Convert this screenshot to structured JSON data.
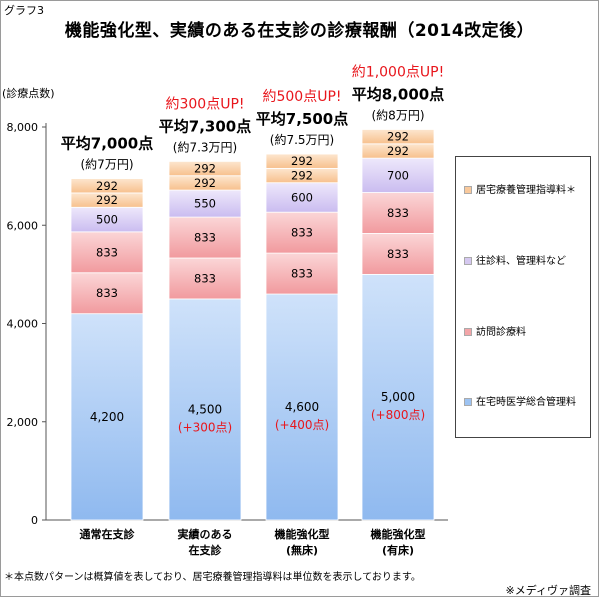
{
  "header": {
    "tag": "グラフ3",
    "title": "機能強化型、実績のある在支診の診療報酬（2014改定後）"
  },
  "footer": {
    "note": "＊本点数パターンは概算値を表しており、居宅療養管理指導料は単位数を表示しております。",
    "source": "※メディヴァ調査"
  },
  "colors": {
    "base": "#9dc3f2",
    "visit": "#f3a5a8",
    "house": "#d5c8f0",
    "kyotaku": "#f9c99c",
    "increase": "#e8161c"
  },
  "chart_data": {
    "type": "bar",
    "stacked": true,
    "ylabel": "(診療点数)",
    "ylim": [
      0,
      8000
    ],
    "yticks": [
      "0",
      "2,000",
      "4,000",
      "6,000",
      "8,000"
    ],
    "categories": [
      [
        "通常在支診"
      ],
      [
        "実績のある",
        "在支診"
      ],
      [
        "機能強化型",
        "(無床)"
      ],
      [
        "機能強化型",
        "(有床)"
      ]
    ],
    "series": [
      {
        "key": "base",
        "name": "在宅時医学総合管理料",
        "values": [
          4200,
          4500,
          4600,
          5000
        ],
        "labels": [
          "4,200",
          "4,500",
          "4,600",
          "5,000"
        ],
        "sublabels": [
          "",
          "(+300点)",
          "(+400点)",
          "(+800点)"
        ]
      },
      {
        "key": "visit",
        "name": "訪問診療料",
        "values": [
          833,
          833,
          833,
          833
        ],
        "labels": [
          "833",
          "833",
          "833",
          "833"
        ]
      },
      {
        "key": "visit",
        "name": "訪問診療料",
        "values": [
          833,
          833,
          833,
          833
        ],
        "labels": [
          "833",
          "833",
          "833",
          "833"
        ]
      },
      {
        "key": "house",
        "name": "往診料、管理料など",
        "values": [
          500,
          550,
          600,
          700
        ],
        "labels": [
          "500",
          "550",
          "600",
          "700"
        ]
      },
      {
        "key": "kyotaku",
        "name": "居宅療養管理指導料＊",
        "values": [
          292,
          292,
          292,
          292
        ],
        "labels": [
          "292",
          "292",
          "292",
          "292"
        ]
      },
      {
        "key": "kyotaku",
        "name": "居宅療養管理指導料＊",
        "values": [
          292,
          292,
          292,
          292
        ],
        "labels": [
          "292",
          "292",
          "292",
          "292"
        ]
      }
    ],
    "annotations": [
      {
        "up": "",
        "avg": "平均7,000点",
        "approx": "(約7万円)"
      },
      {
        "up": "約300点UP!",
        "avg": "平均7,300点",
        "approx": "(約7.3万円)"
      },
      {
        "up": "約500点UP!",
        "avg": "平均7,500点",
        "approx": "(約7.5万円)"
      },
      {
        "up": "約1,000点UP!",
        "avg": "平均8,000点",
        "approx": "(約8万円)"
      }
    ],
    "legend": [
      {
        "key": "kyotaku",
        "label": "居宅療養管理指導料＊"
      },
      {
        "key": "house",
        "label": "往診料、管理料など"
      },
      {
        "key": "visit",
        "label": "訪問診療料"
      },
      {
        "key": "base",
        "label": "在宅時医学総合管理料"
      }
    ],
    "legend_position": "right"
  }
}
